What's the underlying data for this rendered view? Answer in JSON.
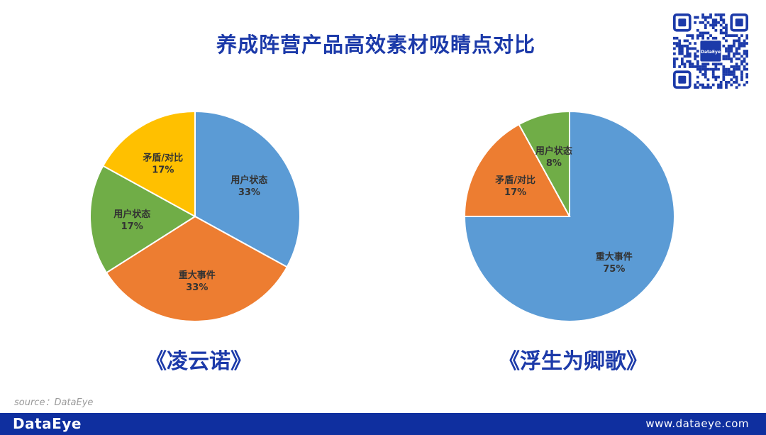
{
  "page": {
    "title": "养成阵营产品高效素材吸睛点对比",
    "source": "source：DataEye",
    "footer": {
      "brand": "DataEye",
      "url": "www.dataeye.com"
    },
    "qr_logo": "DataEye"
  },
  "chart_data": [
    {
      "type": "pie",
      "name": "《凌云诺》",
      "slices": [
        {
          "label": "用户状态",
          "value": 33,
          "display": "33%",
          "color": "#5b9bd5"
        },
        {
          "label": "重大事件",
          "value": 33,
          "display": "33%",
          "color": "#ed7d31"
        },
        {
          "label": "用户状态",
          "value": 17,
          "display": "17%",
          "color": "#70ad47"
        },
        {
          "label": "矛盾/对比",
          "value": 17,
          "display": "17%",
          "color": "#ffc000"
        }
      ]
    },
    {
      "type": "pie",
      "name": "《浮生为卿歌》",
      "slices": [
        {
          "label": "重大事件",
          "value": 75,
          "display": "75%",
          "color": "#5b9bd5"
        },
        {
          "label": "矛盾/对比",
          "value": 17,
          "display": "17%",
          "color": "#ed7d31"
        },
        {
          "label": "用户状态",
          "value": 8,
          "display": "8%",
          "color": "#70ad47"
        }
      ]
    }
  ]
}
